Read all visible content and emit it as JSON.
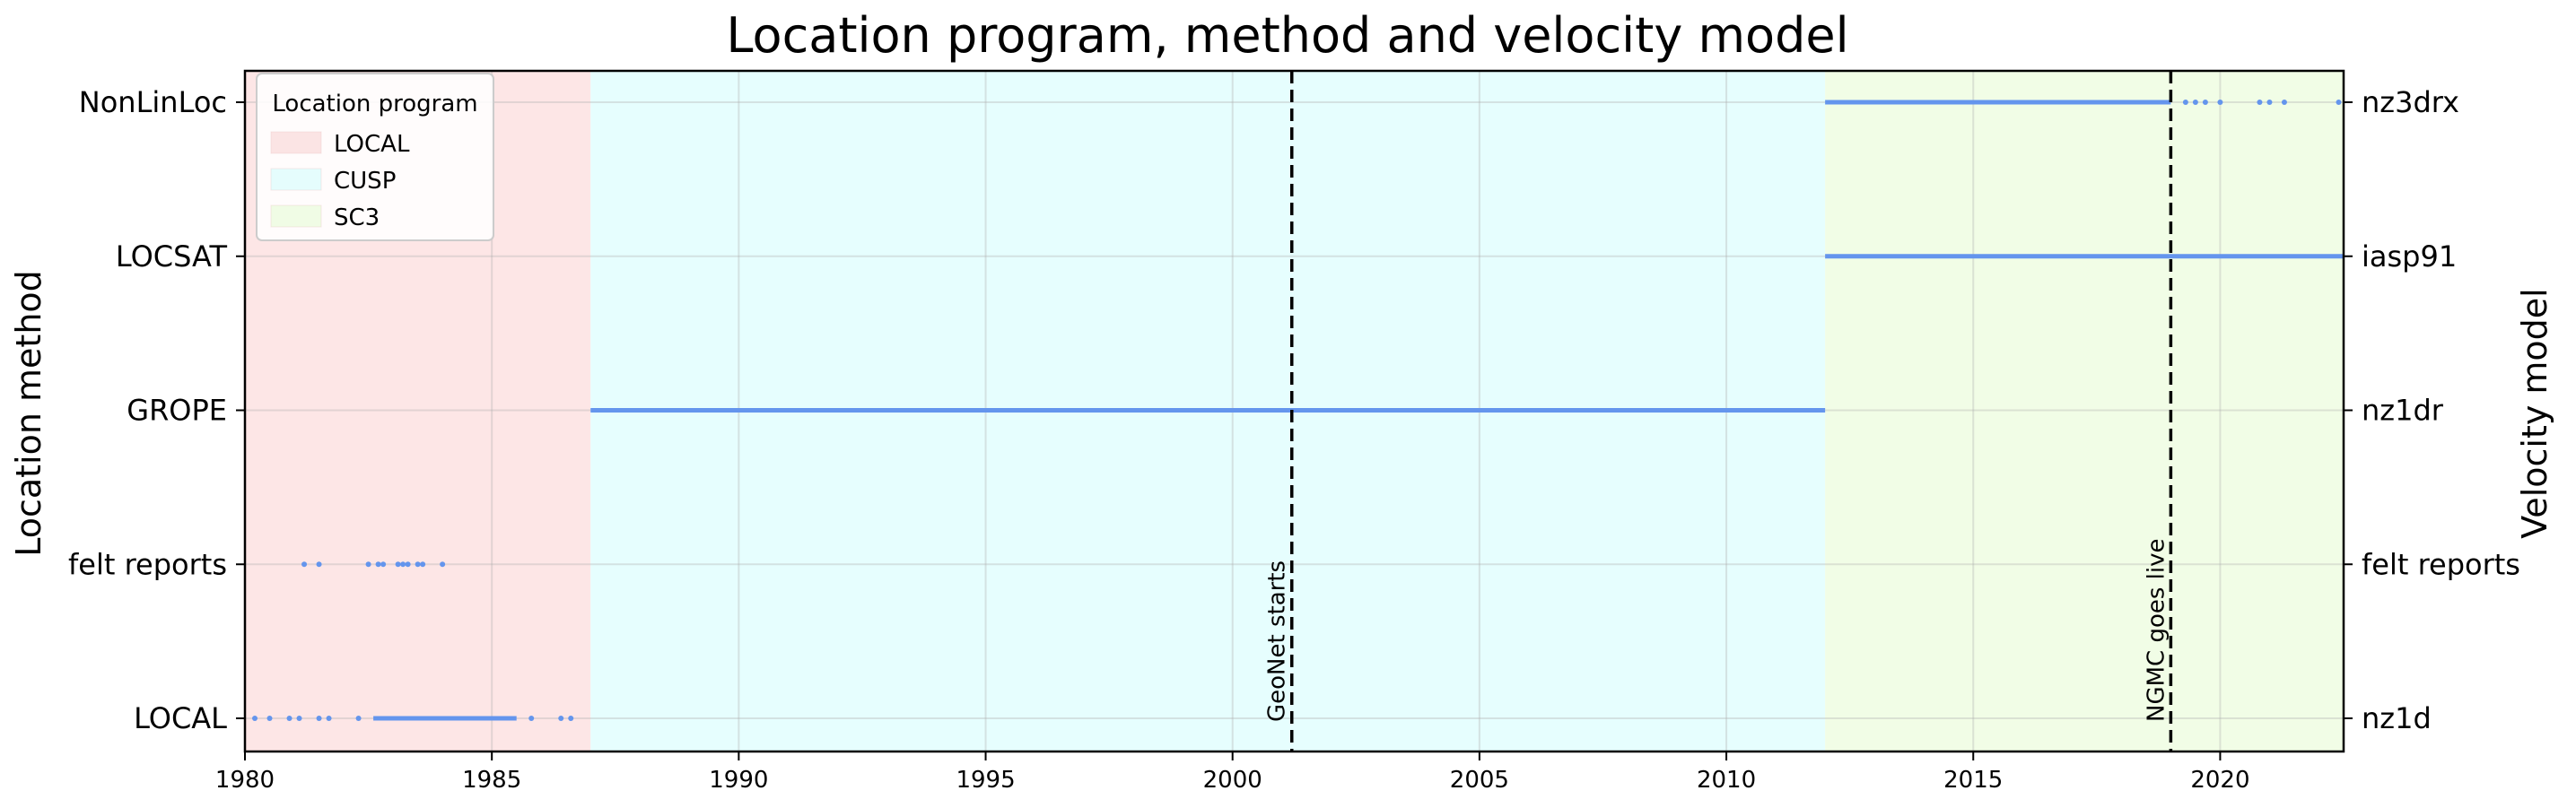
{
  "chart_data": {
    "type": "scatter",
    "title": "Location program, method and velocity model",
    "ylabel_left": "Location method",
    "ylabel_right": "Velocity model",
    "xlim": [
      1980,
      2022.5
    ],
    "x_ticks": [
      1980,
      1985,
      1990,
      1995,
      2000,
      2005,
      2010,
      2015,
      2020
    ],
    "y_categories_left": [
      "LOCAL",
      "felt reports",
      "GROPE",
      "LOCSAT",
      "NonLinLoc"
    ],
    "y_categories_right": [
      "nz1d",
      "felt reports",
      "nz1dr",
      "iasp91",
      "nz3drx"
    ],
    "grid": true,
    "point_color": "#6495ED",
    "legend": {
      "title": "Location program",
      "placement": "top-left",
      "entries": [
        {
          "label": "LOCAL",
          "color": "#FBE4E4"
        },
        {
          "label": "CUSP",
          "color": "#E5FDFD"
        },
        {
          "label": "SC3",
          "color": "#F0FCE5"
        }
      ]
    },
    "program_periods": [
      {
        "label": "LOCAL",
        "start": 1980.0,
        "end": 1987.0,
        "color": "#FDE6E6"
      },
      {
        "label": "CUSP",
        "start": 1987.0,
        "end": 2012.0,
        "color": "#E6FEFE"
      },
      {
        "label": "SC3",
        "start": 2012.0,
        "end": 2022.5,
        "color": "#F1FDE6"
      }
    ],
    "events": [
      {
        "label": "GeoNet starts",
        "x": 2001.2
      },
      {
        "label": "NGMC goes live",
        "x": 2019.0
      }
    ],
    "series": [
      {
        "method": "LOCAL",
        "model": "nz1d",
        "dense": [
          [
            1982.6,
            1985.5
          ]
        ],
        "points": [
          1980.2,
          1980.5,
          1980.9,
          1981.1,
          1981.5,
          1981.7,
          1982.3,
          1985.8,
          1986.4,
          1986.6
        ]
      },
      {
        "method": "felt reports",
        "model": "felt reports",
        "dense": [],
        "points": [
          1981.2,
          1981.5,
          1982.5,
          1982.7,
          1982.8,
          1983.1,
          1983.2,
          1983.3,
          1983.5,
          1983.6,
          1984.0
        ]
      },
      {
        "method": "GROPE",
        "model": "nz1dr",
        "dense": [
          [
            1987.0,
            2012.0
          ]
        ],
        "points": []
      },
      {
        "method": "LOCSAT",
        "model": "iasp91",
        "dense": [
          [
            2012.0,
            2022.5
          ]
        ],
        "points": []
      },
      {
        "method": "NonLinLoc",
        "model": "nz3drx",
        "dense": [
          [
            2012.0,
            2019.0
          ]
        ],
        "points": [
          2019.3,
          2019.5,
          2019.7,
          2020.0,
          2020.8,
          2021.0,
          2021.3,
          2022.4
        ]
      }
    ]
  }
}
